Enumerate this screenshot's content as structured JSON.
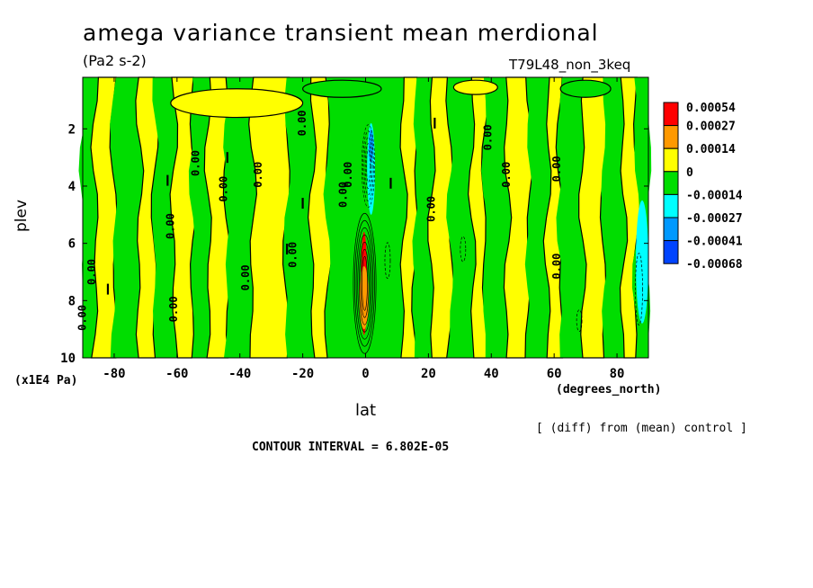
{
  "header": {
    "title": "amega variance transient mean merdional",
    "units": "(Pa2 s-2)",
    "run": "T79L48_non_3keq"
  },
  "footer": {
    "diff_note": "[ (diff) from (mean) control ]",
    "contour_interval": "CONTOUR INTERVAL = 6.802E-05"
  },
  "chart_data": {
    "type": "heatmap",
    "title": "amega variance transient mean merdional",
    "subtitle": "(Pa2 s-2)",
    "run_label": "T79L48_non_3keq",
    "xlabel": "lat",
    "xunit": "(degrees_north)",
    "ylabel": "plev",
    "yunit": "(x1E4 Pa)",
    "xlim": [
      -90,
      90
    ],
    "ylim": [
      10,
      0.2
    ],
    "xticks": [
      -80,
      -60,
      -40,
      -20,
      0,
      20,
      40,
      60,
      80
    ],
    "xtick_labels": [
      "-80",
      "-60",
      "-40",
      "-20",
      "0",
      "20",
      "40",
      "60",
      "80"
    ],
    "yticks": [
      2,
      4,
      6,
      8,
      10
    ],
    "ytick_labels": [
      "2",
      "4",
      "6",
      "8",
      "10"
    ],
    "contour_labels": [
      "0.00",
      "0.00",
      "0.00",
      "0.00",
      "0.00",
      "0.00",
      "0.00",
      "0.00",
      "0.00",
      "0.00",
      "0.00",
      "0.00",
      "0.00",
      "0.00",
      "0.00",
      "0.00",
      "0.00"
    ],
    "colorbar": {
      "levels": [
        "0.00054",
        "0.00027",
        "0.00014",
        "0",
        "-0.00014",
        "-0.00027",
        "-0.00041",
        "-0.00068"
      ],
      "colors": [
        "#ff0000",
        "#ff9900",
        "#ffff00",
        "#00dd00",
        "#00ffff",
        "#0099ff",
        "#0044ff"
      ]
    },
    "fill_colors": {
      "positive": "#ffff00",
      "negative": "#00dd00"
    },
    "bands": [
      {
        "lat": [
          -90,
          -86
        ],
        "value": "negative"
      },
      {
        "lat": [
          -86,
          -80
        ],
        "value": "positive"
      },
      {
        "lat": [
          -80,
          -72
        ],
        "value": "negative"
      },
      {
        "lat": [
          -72,
          -67
        ],
        "value": "positive"
      },
      {
        "lat": [
          -67,
          -61
        ],
        "value": "negative"
      },
      {
        "lat": [
          -61,
          -55
        ],
        "value": "positive"
      },
      {
        "lat": [
          -55,
          -50
        ],
        "value": "negative"
      },
      {
        "lat": [
          -50,
          -44
        ],
        "value": "positive"
      },
      {
        "lat": [
          -44,
          -36
        ],
        "value": "negative"
      },
      {
        "lat": [
          -36,
          -25
        ],
        "value": "positive"
      },
      {
        "lat": [
          -25,
          -17
        ],
        "value": "negative"
      },
      {
        "lat": [
          -17,
          -12
        ],
        "value": "positive"
      },
      {
        "lat": [
          -12,
          -4
        ],
        "value": "negative"
      },
      {
        "lat": [
          -4,
          4
        ],
        "value": "negative"
      },
      {
        "lat": [
          4,
          12
        ],
        "value": "negative"
      },
      {
        "lat": [
          12,
          16
        ],
        "value": "positive"
      },
      {
        "lat": [
          16,
          21
        ],
        "value": "negative"
      },
      {
        "lat": [
          21,
          27
        ],
        "value": "positive"
      },
      {
        "lat": [
          27,
          34
        ],
        "value": "negative"
      },
      {
        "lat": [
          34,
          38
        ],
        "value": "positive"
      },
      {
        "lat": [
          38,
          45
        ],
        "value": "negative"
      },
      {
        "lat": [
          45,
          52
        ],
        "value": "positive"
      },
      {
        "lat": [
          52,
          58
        ],
        "value": "negative"
      },
      {
        "lat": [
          58,
          62
        ],
        "value": "positive"
      },
      {
        "lat": [
          62,
          69
        ],
        "value": "negative"
      },
      {
        "lat": [
          69,
          76
        ],
        "value": "positive"
      },
      {
        "lat": [
          76,
          82
        ],
        "value": "negative"
      },
      {
        "lat": [
          82,
          86
        ],
        "value": "positive"
      },
      {
        "lat": [
          86,
          90
        ],
        "value": "negative"
      }
    ],
    "equatorial_anomalies": [
      {
        "lat": [
          -1.5,
          0.5
        ],
        "plev": [
          5.6,
          9.2
        ],
        "value": 0.00054
      },
      {
        "lat": [
          -2,
          1
        ],
        "plev": [
          6.8,
          9.0
        ],
        "value": 0.00027
      },
      {
        "lat": [
          0.5,
          3
        ],
        "plev": [
          1.8,
          5.0
        ],
        "value": -0.00027
      },
      {
        "lat": [
          1,
          2.5
        ],
        "plev": [
          2.0,
          3.2
        ],
        "value": -0.00041
      },
      {
        "lat": [
          86,
          90
        ],
        "plev": [
          4.5,
          8.8
        ],
        "value": -0.00027
      }
    ]
  }
}
